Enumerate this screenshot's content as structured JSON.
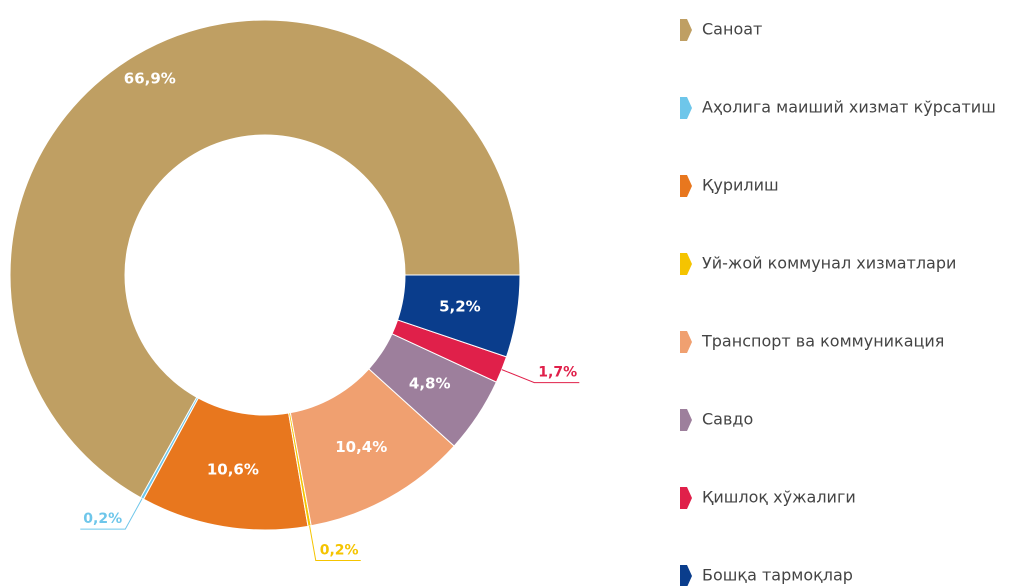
{
  "chart_data": {
    "type": "donut",
    "categories": [
      "Саноат",
      "Аҳолига маиший хизмат кўрсатиш",
      "Қурилиш",
      "Уй-жой коммунал хизматлари",
      "Транспорт ва коммуникация",
      "Савдо",
      "Қишлоқ хўжалиги",
      "Бошқа тармоқлар"
    ],
    "values": [
      66.9,
      0.2,
      10.6,
      0.2,
      10.4,
      4.8,
      1.7,
      5.2
    ],
    "value_labels": [
      "66,9%",
      "0,2%",
      "10,6%",
      "0,2%",
      "10,4%",
      "4,8%",
      "1,7%",
      "5,2%"
    ],
    "colors": [
      "#bf9f63",
      "#6ec6ea",
      "#e8771e",
      "#f5c400",
      "#f0a070",
      "#9d7f9c",
      "#e0204a",
      "#0a3d8c"
    ],
    "legend": "right"
  }
}
